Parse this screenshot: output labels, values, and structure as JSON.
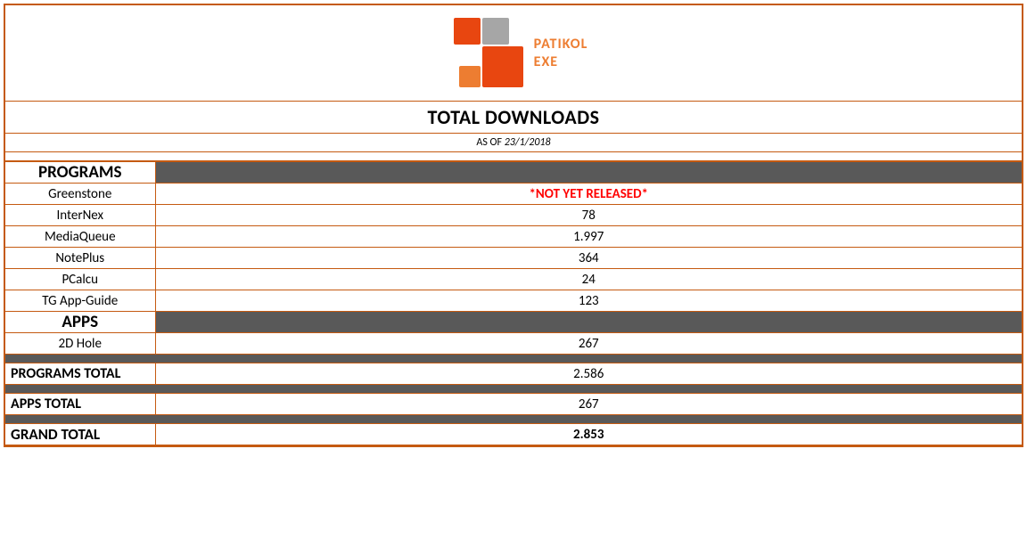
{
  "logo": {
    "line1": "PATIKOL",
    "line2": "EXE",
    "brand_color": "#ed7d31",
    "squares": {
      "red": "#e84610",
      "gray": "#a6a6a6",
      "orange": "#ed7d31"
    }
  },
  "title": "TOTAL DOWNLOADS",
  "asof_label": "AS OF ",
  "asof_date": "23/1/2018",
  "sections": {
    "programs": {
      "header": "PROGRAMS",
      "rows": [
        {
          "name": "Greenstone",
          "value": "*NOT YET RELEASED*",
          "not_released": true
        },
        {
          "name": "InterNex",
          "value": "78"
        },
        {
          "name": "MediaQueue",
          "value": "1.997"
        },
        {
          "name": "NotePlus",
          "value": "364"
        },
        {
          "name": "PCalcu",
          "value": "24"
        },
        {
          "name": "TG App-Guide",
          "value": "123"
        }
      ]
    },
    "apps": {
      "header": "APPS",
      "rows": [
        {
          "name": "2D Hole",
          "value": "267"
        }
      ]
    }
  },
  "totals": {
    "programs_label": "PROGRAMS TOTAL",
    "programs_value": "2.586",
    "apps_label": "APPS TOTAL",
    "apps_value": "267",
    "grand_label": "GRAND TOTAL",
    "grand_value": "2.853"
  },
  "colors": {
    "border": "#c55a11",
    "dark_band": "#595959",
    "not_released": "#ff0000"
  }
}
